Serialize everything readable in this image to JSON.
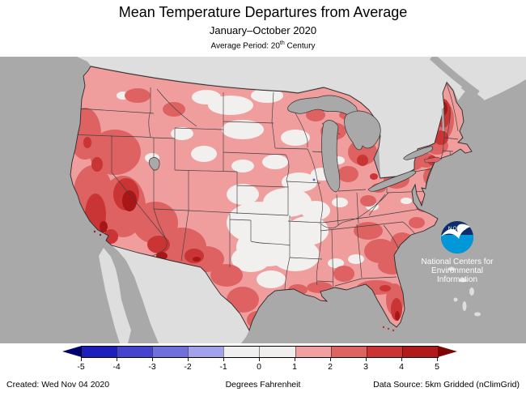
{
  "header": {
    "title": "Mean Temperature Departures from Average",
    "subtitle": "January–October 2020",
    "period_prefix": "Average Period: 20",
    "period_sup": "th",
    "period_suffix": " Century"
  },
  "map": {
    "noaa_logo_text": "NOAA",
    "agency_lines": [
      "National Centers for",
      "Environmental",
      "Information"
    ],
    "colors": {
      "ocean_gray": "#A9A9A9",
      "foreign_land_gray": "#DEDEDE",
      "class_0_1": "#F2F0EF",
      "class_1_2": "#F09D9D",
      "class_2_3": "#DE6262",
      "class_3_4": "#C93434",
      "class_4_5": "#A81616",
      "noaa_navy": "#0D2E6B",
      "noaa_lightblue": "#0098D8"
    }
  },
  "colorbar": {
    "ticks": [
      "-5",
      "-4",
      "-3",
      "-2",
      "-1",
      "0",
      "1",
      "2",
      "3",
      "4",
      "5"
    ],
    "segment_colors": [
      "#1E1EBE",
      "#4444CE",
      "#7070DC",
      "#A2A2EA",
      "#EFEFEF",
      "#F1EFED",
      "#F0A0A0",
      "#DE6363",
      "#CA3434",
      "#B01A1A"
    ],
    "arrow_left_color": "#00006E",
    "arrow_right_color": "#7D0505"
  },
  "footer": {
    "created": "Created: Wed Nov 04 2020",
    "units": "Degrees Fahrenheit",
    "source": "Data Source: 5km Gridded (nClimGrid)"
  },
  "chart_data": {
    "type": "heatmap",
    "title": "Mean Temperature Departures from Average",
    "subtitle": "January–October 2020",
    "baseline": "20th Century average",
    "units": "Degrees Fahrenheit",
    "scale_range": [
      -5,
      5
    ],
    "scale_ticks": [
      -5,
      -4,
      -3,
      -2,
      -1,
      0,
      1,
      2,
      3,
      4,
      5
    ],
    "legend_position": "bottom",
    "region_departures_estimate": {
      "pacific_northwest": 1.5,
      "california_nevada": 3.5,
      "southwest_az_nm": 3,
      "northern_rockies_plains": 1,
      "central_plains_ks_ok_mo_ar": 0.5,
      "upper_midwest": 1.5,
      "great_lakes": 2,
      "southeast_gulf": 2,
      "florida": 3,
      "northeast_new_england": 3.5,
      "texas": 1.5
    }
  }
}
